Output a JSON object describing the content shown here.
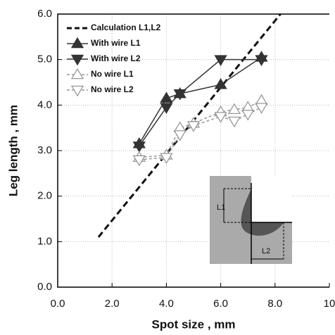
{
  "chart_data": {
    "type": "line",
    "xlabel": "Spot size , mm",
    "ylabel": "Leg length , mm",
    "xlim": [
      0,
      10
    ],
    "ylim": [
      0,
      6
    ],
    "xticks": [
      {
        "value": 0,
        "label": "0.0"
      },
      {
        "value": 2,
        "label": "2.0"
      },
      {
        "value": 4,
        "label": "4.0"
      },
      {
        "value": 6,
        "label": "6.0"
      },
      {
        "value": 8,
        "label": "8.0"
      },
      10
    ],
    "yticks": [
      {
        "value": 0,
        "label": "0.0"
      },
      {
        "value": 1,
        "label": "1.0"
      },
      {
        "value": 2,
        "label": "2.0"
      },
      {
        "value": 3,
        "label": "3.0"
      },
      {
        "value": 4,
        "label": "4.0"
      },
      {
        "value": 5,
        "label": "5.0"
      },
      {
        "value": 6,
        "label": "6.0"
      }
    ],
    "grid": true,
    "legend": "upper left",
    "annotations": [
      "L1",
      "L2"
    ],
    "series": [
      {
        "name": "Calculation L1,L2",
        "color": "#111111",
        "style": "dashed",
        "marker": "none",
        "x": [
          1.5,
          8.2
        ],
        "values": [
          1.1,
          6.0
        ]
      },
      {
        "name": "With wire L1",
        "color": "#333333",
        "style": "solid",
        "marker": "up-filled",
        "x": [
          3,
          4,
          4.5,
          6,
          7.5
        ],
        "values": [
          3.15,
          4.15,
          4.25,
          4.45,
          5.05
        ]
      },
      {
        "name": "With wire L2",
        "color": "#333333",
        "style": "solid",
        "marker": "down-filled",
        "x": [
          3,
          4,
          4.5,
          6,
          7.5
        ],
        "values": [
          3.1,
          3.95,
          4.25,
          5.0,
          5.0
        ]
      },
      {
        "name": "No wire L1",
        "color": "#999999",
        "style": "dashed",
        "marker": "up-open",
        "x": [
          3,
          4,
          4.5,
          5,
          6,
          6.5,
          7,
          7.5
        ],
        "values": [
          2.85,
          2.9,
          3.5,
          3.6,
          3.85,
          3.9,
          3.95,
          4.1
        ]
      },
      {
        "name": "No wire L2",
        "color": "#999999",
        "style": "dashed",
        "marker": "down-open",
        "x": [
          3,
          4,
          4.5,
          5,
          6,
          6.5,
          7,
          7.5
        ],
        "values": [
          2.8,
          2.85,
          3.35,
          3.55,
          3.75,
          3.65,
          3.8,
          3.95
        ]
      }
    ]
  }
}
